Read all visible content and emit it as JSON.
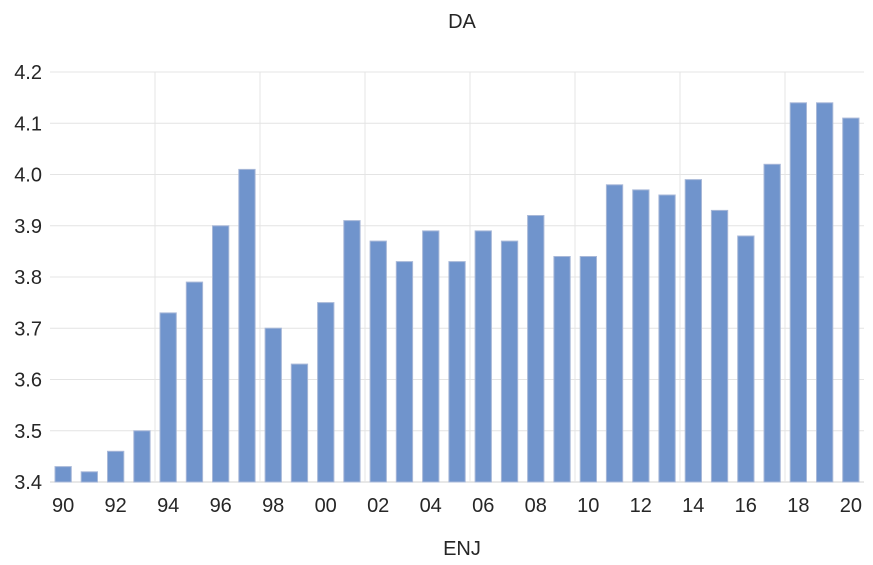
{
  "chart_data": {
    "type": "bar",
    "title": "DA",
    "xlabel": "ENJ",
    "ylabel": "",
    "ylim": [
      3.4,
      4.2
    ],
    "yticks": [
      "3.4",
      "3.5",
      "3.6",
      "3.7",
      "3.8",
      "3.9",
      "4.0",
      "4.1",
      "4.2"
    ],
    "categories": [
      "90",
      "91",
      "92",
      "93",
      "94",
      "95",
      "96",
      "97",
      "98",
      "99",
      "00",
      "01",
      "02",
      "03",
      "04",
      "05",
      "06",
      "07",
      "08",
      "09",
      "10",
      "11",
      "12",
      "13",
      "14",
      "15",
      "16",
      "17",
      "18",
      "19",
      "20"
    ],
    "xtick_labels": [
      "90",
      "92",
      "94",
      "96",
      "98",
      "00",
      "02",
      "04",
      "06",
      "08",
      "10",
      "12",
      "14",
      "16",
      "18",
      "20"
    ],
    "values": [
      3.43,
      3.42,
      3.46,
      3.5,
      3.73,
      3.79,
      3.9,
      4.01,
      3.7,
      3.63,
      3.75,
      3.91,
      3.87,
      3.83,
      3.89,
      3.83,
      3.89,
      3.87,
      3.92,
      3.84,
      3.84,
      3.98,
      3.97,
      3.96,
      3.99,
      3.93,
      3.88,
      4.02,
      4.14,
      4.14,
      4.11
    ],
    "bar_color": "#7094cc",
    "grid": true,
    "legend": "none"
  }
}
